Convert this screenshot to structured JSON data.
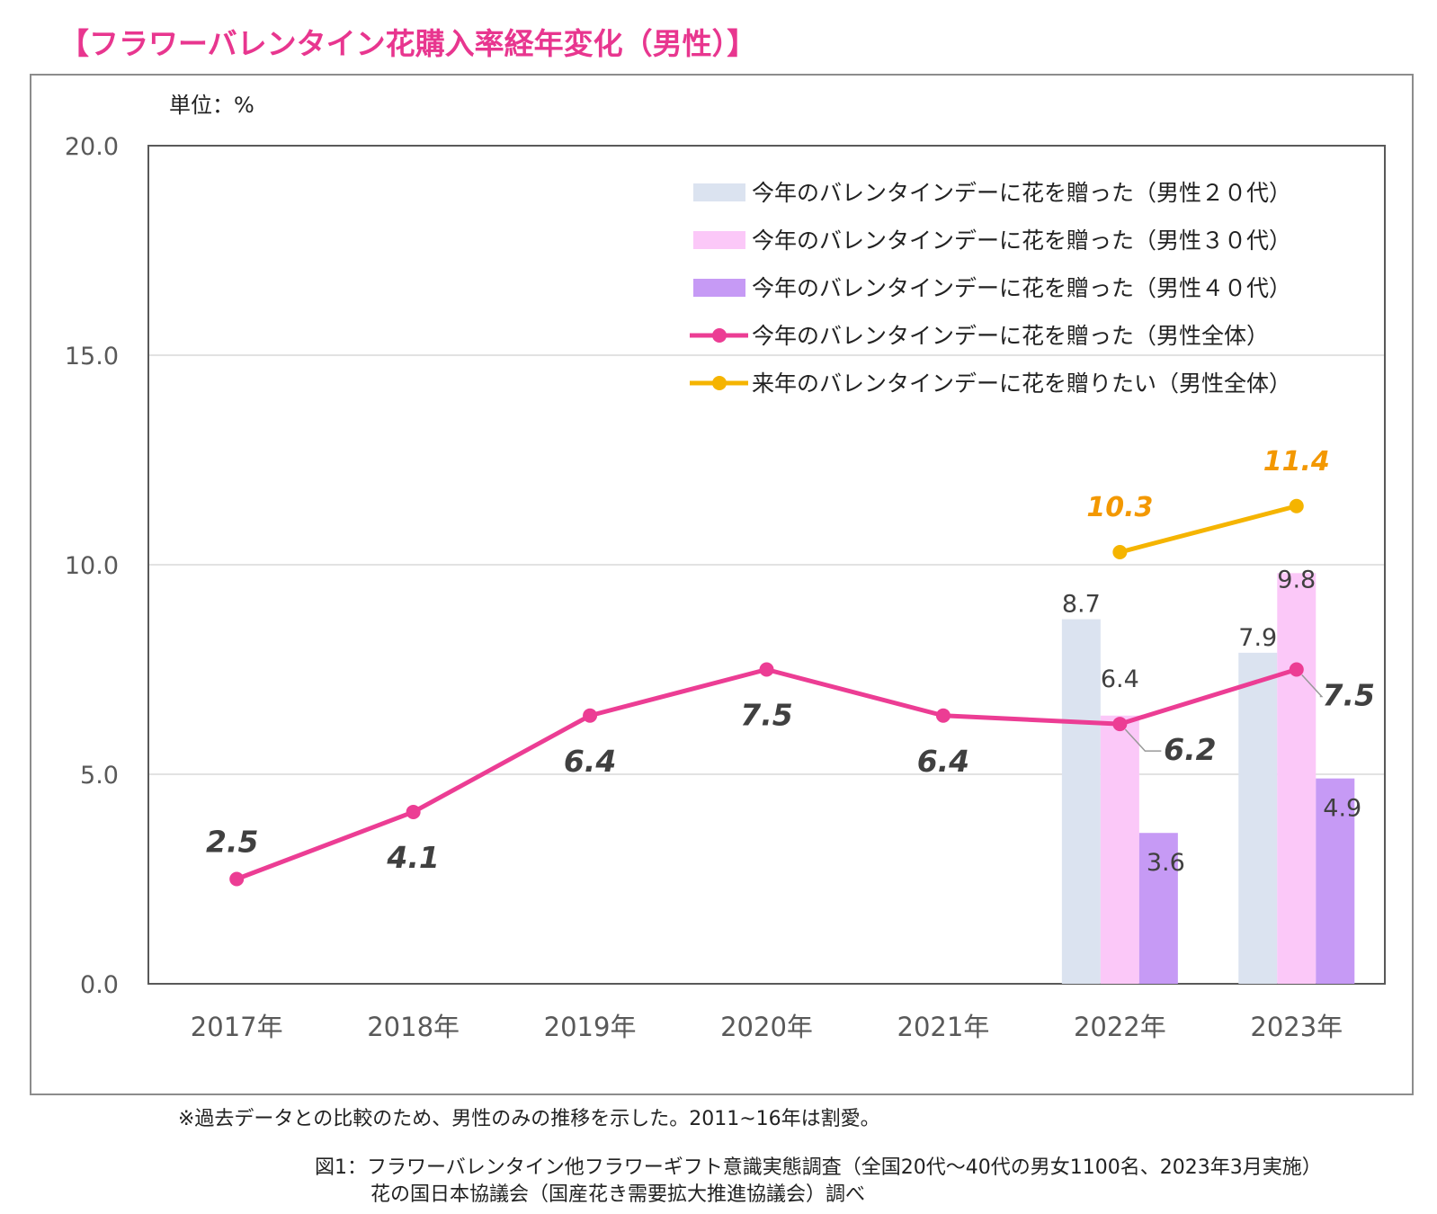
{
  "title": "【フラワーバレンタイン花購入率経年変化（男性）】",
  "unit_label": "単位：%",
  "colors": {
    "bar20": "#dbe3f0",
    "bar30": "#fbc8f8",
    "bar40": "#c69af5",
    "line_total": "#ec3d94",
    "line_next": "#f5b400",
    "label_next": "#f39800",
    "grid": "#d9d9d9",
    "axis": "#595959"
  },
  "chart_data": {
    "type": "bar+line",
    "title": "【フラワーバレンタイン花購入率経年変化（男性）】",
    "ylabel": "単位：%",
    "ylim": [
      0,
      20
    ],
    "yticks": [
      "0.0",
      "5.0",
      "10.0",
      "15.0",
      "20.0"
    ],
    "categories": [
      "2017年",
      "2018年",
      "2019年",
      "2020年",
      "2021年",
      "2022年",
      "2023年"
    ],
    "legend_position": "top-right",
    "bar_series": [
      {
        "name": "今年のバレンタインデーに花を贈った（男性２０代）",
        "color_key": "bar20",
        "values": [
          null,
          null,
          null,
          null,
          null,
          8.7,
          7.9
        ],
        "labels": [
          null,
          null,
          null,
          null,
          null,
          "8.7",
          "7.9"
        ]
      },
      {
        "name": "今年のバレンタインデーに花を贈った（男性３０代）",
        "color_key": "bar30",
        "values": [
          null,
          null,
          null,
          null,
          null,
          6.4,
          9.8
        ],
        "labels": [
          null,
          null,
          null,
          null,
          null,
          "6.4",
          "9.8"
        ]
      },
      {
        "name": "今年のバレンタインデーに花を贈った（男性４０代）",
        "color_key": "bar40",
        "values": [
          null,
          null,
          null,
          null,
          null,
          3.6,
          4.9
        ],
        "labels": [
          null,
          null,
          null,
          null,
          null,
          "3.6",
          "4.9"
        ]
      }
    ],
    "line_series": [
      {
        "name": "今年のバレンタインデーに花を贈った（男性全体）",
        "color_key": "line_total",
        "values": [
          2.5,
          4.1,
          6.4,
          7.5,
          6.4,
          6.2,
          7.5
        ],
        "labels": [
          "2.5",
          "4.1",
          "6.4",
          "7.5",
          "6.4",
          "6.2",
          "7.5"
        ]
      },
      {
        "name": "来年のバレンタインデーに花を贈りたい（男性全体）",
        "color_key": "line_next",
        "values": [
          null,
          null,
          null,
          null,
          null,
          10.3,
          11.4
        ],
        "labels": [
          null,
          null,
          null,
          null,
          null,
          "10.3",
          "11.4"
        ]
      }
    ]
  },
  "footnote": "※過去データとの比較のため、男性のみの推移を示した。2011~16年は割愛。",
  "source_line1": "図1：フラワーバレンタイン他フラワーギフト意識実態調査（全国20代～40代の男女1100名、2023年3月実施）",
  "source_line2": "花の国日本協議会（国産花き需要拡大推進協議会）調べ"
}
